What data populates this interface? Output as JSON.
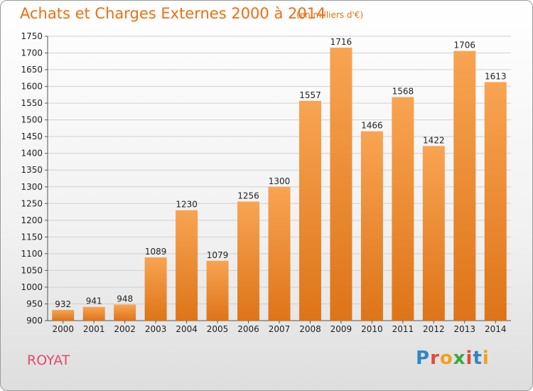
{
  "header": {
    "title": "Achats et Charges Externes 2000 à 2014",
    "unit": "(en milliers d'€)"
  },
  "footer": {
    "commune": "ROYAT",
    "logo": "Proxiti"
  },
  "colors": {
    "title": "#ee6e10",
    "bar_top": "#f8a452",
    "bar_bottom": "#de7418",
    "commune": "#e44a6a"
  },
  "chart_data": {
    "type": "bar",
    "categories": [
      "2000",
      "2001",
      "2002",
      "2003",
      "2004",
      "2005",
      "2006",
      "2007",
      "2008",
      "2009",
      "2010",
      "2011",
      "2012",
      "2013",
      "2014"
    ],
    "values": [
      932,
      941,
      948,
      1089,
      1230,
      1079,
      1256,
      1300,
      1557,
      1716,
      1466,
      1568,
      1422,
      1706,
      1613
    ],
    "title": "Achats et Charges Externes 2000 à 2014",
    "ylim": [
      900,
      1750
    ],
    "yticks": [
      900,
      950,
      1000,
      1050,
      1100,
      1150,
      1200,
      1250,
      1300,
      1350,
      1400,
      1450,
      1500,
      1550,
      1600,
      1650,
      1700,
      1750
    ],
    "grid": true,
    "legend": "none"
  }
}
